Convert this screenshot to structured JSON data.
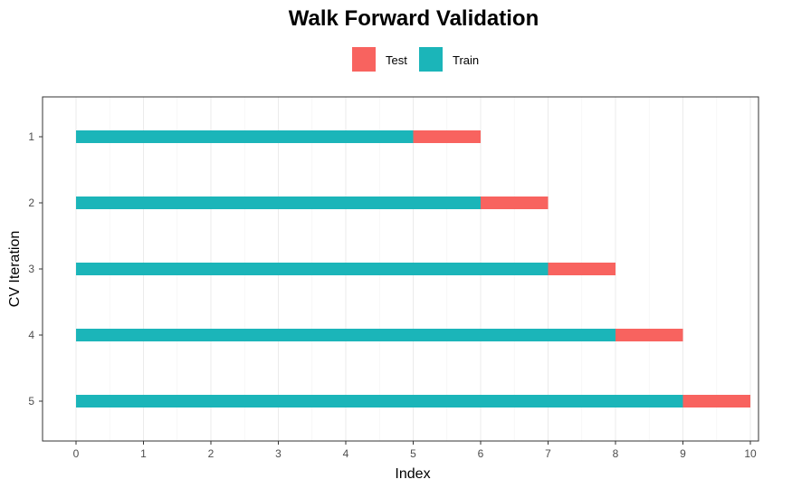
{
  "chart_data": {
    "type": "bar",
    "orientation": "horizontal",
    "stacked": true,
    "title": "Walk Forward Validation",
    "xlabel": "Index",
    "ylabel": "CV Iteration",
    "xlim": [
      0,
      10
    ],
    "x_ticks": [
      "0",
      "1",
      "2",
      "3",
      "4",
      "5",
      "6",
      "7",
      "8",
      "9",
      "10"
    ],
    "categories": [
      "1",
      "2",
      "3",
      "4",
      "5"
    ],
    "legend_position": "top",
    "grid": true,
    "legend": [
      {
        "name": "Test",
        "color": "#F8635F"
      },
      {
        "name": "Train",
        "color": "#1BB5B9"
      }
    ],
    "series": [
      {
        "name": "Train",
        "color": "#1BB5B9",
        "segments": [
          [
            0,
            5
          ],
          [
            0,
            6
          ],
          [
            0,
            7
          ],
          [
            0,
            8
          ],
          [
            0,
            9
          ]
        ]
      },
      {
        "name": "Test",
        "color": "#F8635F",
        "segments": [
          [
            5,
            6
          ],
          [
            6,
            7
          ],
          [
            7,
            8
          ],
          [
            8,
            9
          ],
          [
            9,
            10
          ]
        ]
      }
    ]
  }
}
